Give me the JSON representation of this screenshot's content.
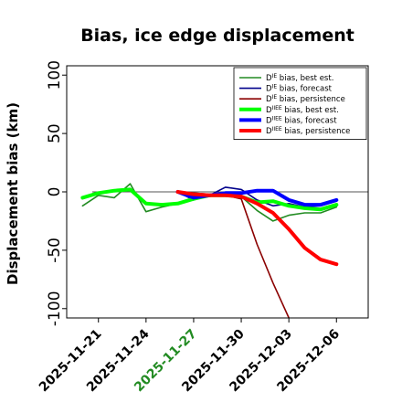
{
  "chart_data": {
    "type": "line",
    "title": "Bias, ice edge displacement",
    "xlabel": "",
    "ylabel": "Displacement bias (km)",
    "ylim": [
      -108,
      108
    ],
    "xlim": [
      "2025-11-19",
      "2025-12-08"
    ],
    "grid": false,
    "legend_position": "top-right",
    "x_ticks": [
      {
        "label": "2025-11-21",
        "date": "2025-11-21",
        "color": "#000000"
      },
      {
        "label": "2025-11-24",
        "date": "2025-11-24",
        "color": "#000000"
      },
      {
        "label": "2025-11-27",
        "date": "2025-11-27",
        "color": "#228B22"
      },
      {
        "label": "2025-11-30",
        "date": "2025-11-30",
        "color": "#000000"
      },
      {
        "label": "2025-12-03",
        "date": "2025-12-03",
        "color": "#000000"
      },
      {
        "label": "2025-12-06",
        "date": "2025-12-06",
        "color": "#000000"
      }
    ],
    "y_ticks": [
      100,
      50,
      0,
      -50,
      -100
    ],
    "reference_line": {
      "y": 0,
      "color": "#555555"
    },
    "series": [
      {
        "name": "D^IE bias, best est.",
        "color": "#228B22",
        "width": 1.6,
        "points": [
          [
            "2025-11-20",
            -12
          ],
          [
            "2025-11-21",
            -3
          ],
          [
            "2025-11-22",
            -5
          ],
          [
            "2025-11-23",
            7
          ],
          [
            "2025-11-24",
            -17
          ],
          [
            "2025-11-25",
            -13
          ],
          [
            "2025-11-26",
            -10
          ],
          [
            "2025-11-27",
            -6
          ],
          [
            "2025-11-28",
            -3
          ],
          [
            "2025-11-29",
            -2
          ],
          [
            "2025-11-30",
            -4
          ],
          [
            "2025-12-01",
            -16
          ],
          [
            "2025-12-02",
            -25
          ],
          [
            "2025-12-03",
            -20
          ],
          [
            "2025-12-04",
            -18
          ],
          [
            "2025-12-05",
            -18
          ],
          [
            "2025-12-06",
            -13
          ]
        ]
      },
      {
        "name": "D^IE bias, forecast",
        "color": "#00008B",
        "width": 1.6,
        "points": [
          [
            "2025-11-26",
            0
          ],
          [
            "2025-11-27",
            -7
          ],
          [
            "2025-11-28",
            -3
          ],
          [
            "2025-11-29",
            4
          ],
          [
            "2025-11-30",
            2
          ],
          [
            "2025-12-01",
            -7
          ],
          [
            "2025-12-02",
            -12
          ],
          [
            "2025-12-03",
            -10
          ],
          [
            "2025-12-04",
            -13
          ],
          [
            "2025-12-05",
            -12
          ],
          [
            "2025-12-06",
            -8
          ]
        ]
      },
      {
        "name": "D^IE bias, persistence",
        "color": "#8B0000",
        "width": 1.6,
        "points": [
          [
            "2025-11-26",
            0
          ],
          [
            "2025-11-27",
            -1
          ],
          [
            "2025-11-28",
            -2
          ],
          [
            "2025-11-29",
            -3
          ],
          [
            "2025-11-30",
            -6
          ],
          [
            "2025-12-01",
            -45
          ],
          [
            "2025-12-02",
            -78
          ],
          [
            "2025-12-03",
            -108
          ]
        ]
      },
      {
        "name": "D^IIEE bias, best est.",
        "color": "#00FF00",
        "width": 4,
        "points": [
          [
            "2025-11-20",
            -5
          ],
          [
            "2025-11-21",
            -1
          ],
          [
            "2025-11-22",
            1
          ],
          [
            "2025-11-23",
            2
          ],
          [
            "2025-11-24",
            -10
          ],
          [
            "2025-11-25",
            -11
          ],
          [
            "2025-11-26",
            -10
          ],
          [
            "2025-11-27",
            -6
          ],
          [
            "2025-11-28",
            -3
          ],
          [
            "2025-11-29",
            -3
          ],
          [
            "2025-11-30",
            -4
          ],
          [
            "2025-12-01",
            -9
          ],
          [
            "2025-12-02",
            -8
          ],
          [
            "2025-12-03",
            -12
          ],
          [
            "2025-12-04",
            -14
          ],
          [
            "2025-12-05",
            -15
          ],
          [
            "2025-12-06",
            -11
          ]
        ]
      },
      {
        "name": "D^IIEE bias, forecast",
        "color": "#0000FF",
        "width": 4,
        "points": [
          [
            "2025-11-26",
            0
          ],
          [
            "2025-11-27",
            -5
          ],
          [
            "2025-11-28",
            -3
          ],
          [
            "2025-11-29",
            -1
          ],
          [
            "2025-11-30",
            -1
          ],
          [
            "2025-12-01",
            1
          ],
          [
            "2025-12-02",
            1
          ],
          [
            "2025-12-03",
            -7
          ],
          [
            "2025-12-04",
            -11
          ],
          [
            "2025-12-05",
            -11
          ],
          [
            "2025-12-06",
            -7
          ]
        ]
      },
      {
        "name": "D^IIEE bias, persistence",
        "color": "#FF0000",
        "width": 4,
        "points": [
          [
            "2025-11-26",
            0
          ],
          [
            "2025-11-27",
            -2
          ],
          [
            "2025-11-28",
            -3
          ],
          [
            "2025-11-29",
            -3
          ],
          [
            "2025-11-30",
            -4
          ],
          [
            "2025-12-01",
            -10
          ],
          [
            "2025-12-02",
            -18
          ],
          [
            "2025-12-03",
            -32
          ],
          [
            "2025-12-04",
            -48
          ],
          [
            "2025-12-05",
            -58
          ],
          [
            "2025-12-06",
            -62
          ]
        ]
      }
    ],
    "legend": [
      {
        "prefix": "D",
        "sup": "IE",
        "rest": " bias, best est.",
        "color": "#228B22",
        "width": 1.6
      },
      {
        "prefix": "D",
        "sup": "IE",
        "rest": " bias, forecast",
        "color": "#00008B",
        "width": 1.6
      },
      {
        "prefix": "D",
        "sup": "IE",
        "rest": " bias, persistence",
        "color": "#8B0000",
        "width": 1.6
      },
      {
        "prefix": "D",
        "sup": "IIEE",
        "rest": " bias, best est.",
        "color": "#00FF00",
        "width": 4
      },
      {
        "prefix": "D",
        "sup": "IIEE",
        "rest": " bias, forecast",
        "color": "#0000FF",
        "width": 4
      },
      {
        "prefix": "D",
        "sup": "IIEE",
        "rest": " bias, persistence",
        "color": "#FF0000",
        "width": 4
      }
    ]
  }
}
